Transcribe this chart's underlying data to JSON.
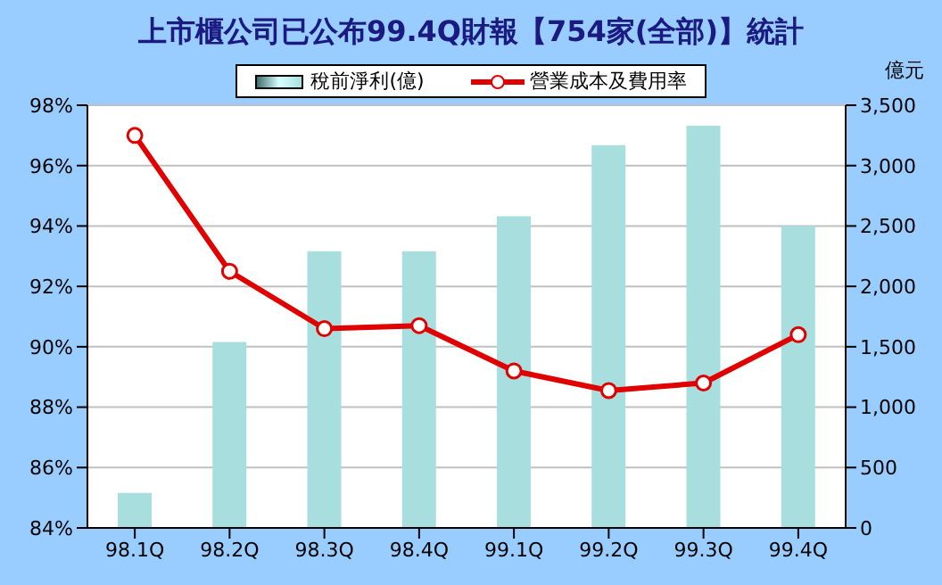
{
  "chart_data": {
    "type": "bar",
    "title": "上市櫃公司已公布99.4Q財報【754家(全部)】統計",
    "y2label": "億元",
    "categories": [
      "98.1Q",
      "98.2Q",
      "98.3Q",
      "98.4Q",
      "99.1Q",
      "99.2Q",
      "99.3Q",
      "99.4Q"
    ],
    "series": [
      {
        "name": "稅前淨利(億)",
        "axis": "y2",
        "color": "#a8dede",
        "values": [
          290,
          1540,
          2290,
          2290,
          2580,
          3170,
          3330,
          2500
        ]
      },
      {
        "name": "營業成本及費用率",
        "type": "line",
        "color": "#e00000",
        "marker": "circle",
        "values": [
          97.0,
          92.5,
          90.6,
          90.7,
          89.2,
          88.55,
          88.8,
          90.4
        ]
      }
    ],
    "ylim": [
      84,
      98
    ],
    "yticks": [
      {
        "value": 84,
        "label": "84%"
      },
      {
        "value": 86,
        "label": "86%"
      },
      {
        "value": 88,
        "label": "88%"
      },
      {
        "value": 90,
        "label": "90%"
      },
      {
        "value": 92,
        "label": "92%"
      },
      {
        "value": 94,
        "label": "94%"
      },
      {
        "value": 96,
        "label": "96%"
      },
      {
        "value": 98,
        "label": "98%"
      }
    ],
    "y2lim": [
      0,
      3500
    ],
    "y2ticks": [
      0,
      500,
      {
        "value": 1000,
        "label": "1,000"
      },
      {
        "value": 1500,
        "label": "1,500"
      },
      {
        "value": 2000,
        "label": "2,000"
      },
      {
        "value": 2500,
        "label": "2,500"
      },
      {
        "value": 3000,
        "label": "3,000"
      },
      {
        "value": 3500,
        "label": "3,500"
      }
    ],
    "grid": "y",
    "legend": "top"
  }
}
